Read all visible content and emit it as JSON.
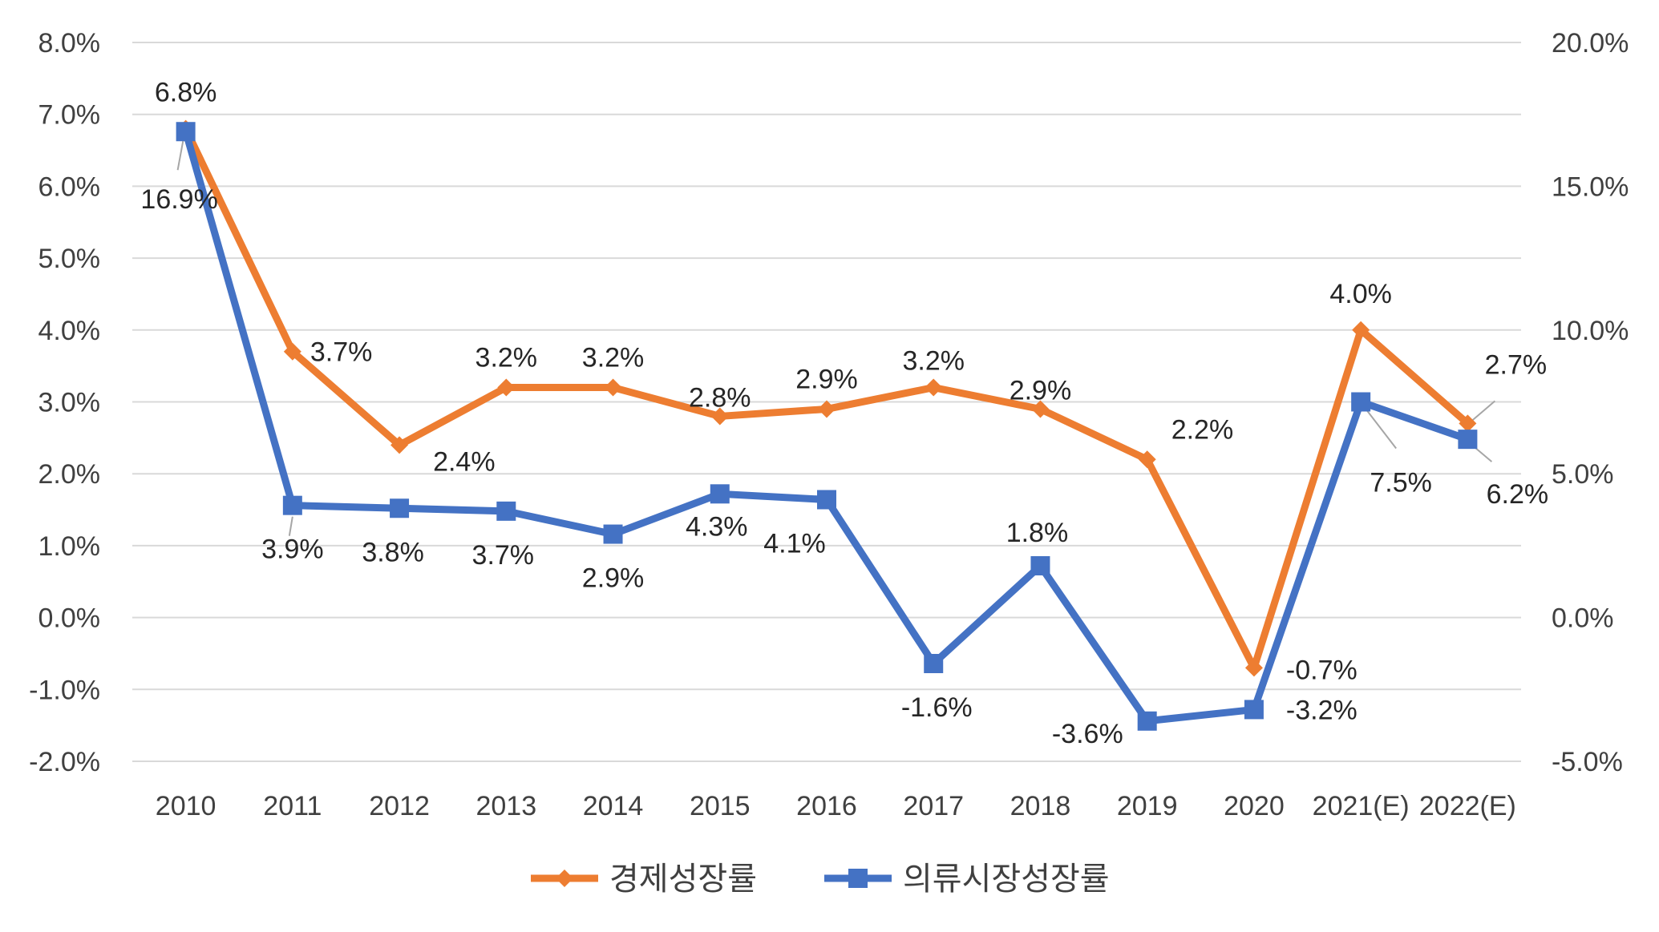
{
  "chart_data": {
    "type": "line",
    "title": "",
    "categories": [
      "2010",
      "2011",
      "2012",
      "2013",
      "2014",
      "2015",
      "2016",
      "2017",
      "2018",
      "2019",
      "2020",
      "2021(E)",
      "2022(E)"
    ],
    "y_left": {
      "range": [
        -2.0,
        8.0
      ],
      "ticks": [
        8.0,
        7.0,
        6.0,
        5.0,
        4.0,
        3.0,
        2.0,
        1.0,
        0.0,
        -1.0,
        -2.0
      ],
      "tick_labels": [
        "8.0%",
        "7.0%",
        "6.0%",
        "5.0%",
        "4.0%",
        "3.0%",
        "2.0%",
        "1.0%",
        "0.0%",
        "-1.0%",
        "-2.0%"
      ]
    },
    "y_right": {
      "range": [
        -5.0,
        20.0
      ],
      "ticks": [
        20.0,
        15.0,
        10.0,
        5.0,
        0.0,
        -5.0
      ],
      "tick_labels": [
        "20.0%",
        "15.0%",
        "10.0%",
        "5.0%",
        "0.0%",
        "-5.0%"
      ]
    },
    "grid": true,
    "legend": "bottom",
    "series": [
      {
        "name": "경제성장률",
        "axis": "left",
        "color": "#ed7d31",
        "marker": "diamond",
        "values": [
          6.8,
          3.7,
          2.4,
          3.2,
          3.2,
          2.8,
          2.9,
          3.2,
          2.9,
          2.2,
          -0.7,
          4.0,
          2.7
        ],
        "labels": [
          "6.8%",
          "3.7%",
          "2.4%",
          "3.2%",
          "3.2%",
          "2.8%",
          "2.9%",
          "3.2%",
          "2.9%",
          "2.2%",
          "-0.7%",
          "4.0%",
          "2.7%"
        ]
      },
      {
        "name": "의류시장성장률",
        "axis": "right",
        "color": "#4472c4",
        "marker": "square",
        "values": [
          16.9,
          3.9,
          3.8,
          3.7,
          2.9,
          4.3,
          4.1,
          -1.6,
          1.8,
          -3.6,
          -3.2,
          7.5,
          6.2
        ],
        "labels": [
          "16.9%",
          "3.9%",
          "3.8%",
          "3.7%",
          "2.9%",
          "4.3%",
          "4.1%",
          "-1.6%",
          "1.8%",
          "-3.6%",
          "-3.2%",
          "7.5%",
          "6.2%"
        ]
      }
    ]
  }
}
